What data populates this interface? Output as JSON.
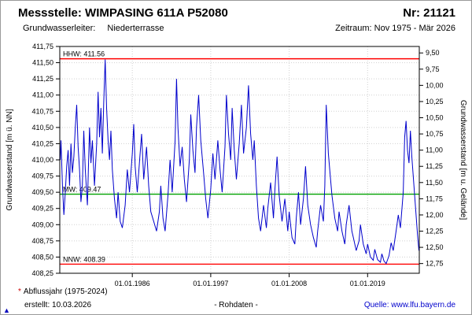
{
  "header": {
    "title": "Messstelle: WIMPASING 611A P52080",
    "number_label": "Nr: 21121",
    "aquifer_label": "Grundwasserleiter:",
    "aquifer_value": "Niederterrasse",
    "period_label": "Zeitraum: Nov 1975 - Mär 2026"
  },
  "footer": {
    "footnote_asterisk": "*",
    "footnote_text": "Abflussjahr (1975-2024)",
    "created_label": "erstellt: 10.03.2026",
    "data_type_label": "- Rohdaten -",
    "source_label": "Quelle: www.lfu.bayern.de",
    "scroll_icon": "▲"
  },
  "chart_data": {
    "type": "line",
    "title": "",
    "xlabel": "",
    "ylabel_left": "Grundwasserstand [m ü. NN]",
    "ylabel_right": "Grundwasserstand [m u. Gelände]",
    "ylim": [
      408.25,
      411.75
    ],
    "xlim": [
      1975.83,
      2026.25
    ],
    "ground_level": 421.15,
    "grid": true,
    "grid_color": "#d0d0d0",
    "legend_position": "none",
    "y_ticks_left": [
      {
        "v": 411.75,
        "label": "411,75"
      },
      {
        "v": 411.5,
        "label": "411,50"
      },
      {
        "v": 411.25,
        "label": "411,25"
      },
      {
        "v": 411.0,
        "label": "411,00"
      },
      {
        "v": 410.75,
        "label": "410,75"
      },
      {
        "v": 410.5,
        "label": "410,50"
      },
      {
        "v": 410.25,
        "label": "410,25"
      },
      {
        "v": 410.0,
        "label": "410,00"
      },
      {
        "v": 409.75,
        "label": "409,75"
      },
      {
        "v": 409.5,
        "label": "409,50"
      },
      {
        "v": 409.25,
        "label": "409,25"
      },
      {
        "v": 409.0,
        "label": "409,00"
      },
      {
        "v": 408.75,
        "label": "408,75"
      },
      {
        "v": 408.5,
        "label": "408,50"
      },
      {
        "v": 408.25,
        "label": "408,25"
      }
    ],
    "y_ticks_right": [
      {
        "v": 9.5,
        "label": "9,50"
      },
      {
        "v": 9.75,
        "label": "9,75"
      },
      {
        "v": 10.0,
        "label": "10,00"
      },
      {
        "v": 10.25,
        "label": "10,25"
      },
      {
        "v": 10.5,
        "label": "10,50"
      },
      {
        "v": 10.75,
        "label": "10,75"
      },
      {
        "v": 11.0,
        "label": "11,00"
      },
      {
        "v": 11.25,
        "label": "11,25"
      },
      {
        "v": 11.5,
        "label": "11,50"
      },
      {
        "v": 11.75,
        "label": "11,75"
      },
      {
        "v": 12.0,
        "label": "12,00"
      },
      {
        "v": 12.25,
        "label": "12,25"
      },
      {
        "v": 12.5,
        "label": "12,50"
      },
      {
        "v": 12.75,
        "label": "12,75"
      }
    ],
    "x_ticks": [
      {
        "v": 1986.0,
        "label": "01.01.1986"
      },
      {
        "v": 1997.0,
        "label": "01.01.1997"
      },
      {
        "v": 2008.0,
        "label": "01.01.2008"
      },
      {
        "v": 2019.0,
        "label": "01.01.2019"
      }
    ],
    "reference_lines": [
      {
        "name": "HHW",
        "label": "HHW: 411.56",
        "value": 411.56,
        "color": "#ff0000"
      },
      {
        "name": "MW",
        "label": "MW: 409.47",
        "value": 409.47,
        "color": "#00a000"
      },
      {
        "name": "NNW",
        "label": "NNW: 408.39",
        "value": 408.39,
        "color": "#ff0000"
      }
    ],
    "series": [
      {
        "name": "Grundwasserstand Rohdaten",
        "color": "#0000cc",
        "points": [
          [
            1975.9,
            410.0
          ],
          [
            1976.0,
            410.3
          ],
          [
            1976.2,
            409.6
          ],
          [
            1976.4,
            409.15
          ],
          [
            1976.6,
            409.5
          ],
          [
            1976.8,
            409.9
          ],
          [
            1977.0,
            410.15
          ],
          [
            1977.2,
            409.6
          ],
          [
            1977.4,
            410.25
          ],
          [
            1977.6,
            409.8
          ],
          [
            1977.8,
            410.05
          ],
          [
            1978.0,
            410.5
          ],
          [
            1978.2,
            410.85
          ],
          [
            1978.4,
            410.2
          ],
          [
            1978.6,
            409.85
          ],
          [
            1978.8,
            409.35
          ],
          [
            1979.0,
            409.6
          ],
          [
            1979.2,
            410.45
          ],
          [
            1979.4,
            409.85
          ],
          [
            1979.7,
            409.3
          ],
          [
            1980.0,
            410.5
          ],
          [
            1980.2,
            409.95
          ],
          [
            1980.4,
            410.3
          ],
          [
            1980.7,
            409.6
          ],
          [
            1981.0,
            410.25
          ],
          [
            1981.2,
            411.05
          ],
          [
            1981.4,
            410.35
          ],
          [
            1981.6,
            410.8
          ],
          [
            1981.8,
            410.1
          ],
          [
            1982.0,
            410.9
          ],
          [
            1982.2,
            411.55
          ],
          [
            1982.4,
            410.8
          ],
          [
            1982.6,
            410.3
          ],
          [
            1982.8,
            410.0
          ],
          [
            1983.0,
            410.45
          ],
          [
            1983.2,
            409.85
          ],
          [
            1983.5,
            409.4
          ],
          [
            1983.8,
            409.1
          ],
          [
            1984.0,
            409.5
          ],
          [
            1984.3,
            409.05
          ],
          [
            1984.6,
            408.95
          ],
          [
            1985.0,
            409.3
          ],
          [
            1985.3,
            409.85
          ],
          [
            1985.6,
            409.5
          ],
          [
            1986.0,
            410.1
          ],
          [
            1986.2,
            410.55
          ],
          [
            1986.4,
            409.9
          ],
          [
            1986.7,
            409.5
          ],
          [
            1987.0,
            409.95
          ],
          [
            1987.3,
            410.4
          ],
          [
            1987.6,
            409.7
          ],
          [
            1988.0,
            410.2
          ],
          [
            1988.3,
            409.6
          ],
          [
            1988.6,
            409.2
          ],
          [
            1989.0,
            409.05
          ],
          [
            1989.4,
            408.9
          ],
          [
            1989.8,
            409.2
          ],
          [
            1990.0,
            409.6
          ],
          [
            1990.3,
            409.1
          ],
          [
            1990.6,
            408.9
          ],
          [
            1991.0,
            409.45
          ],
          [
            1991.3,
            410.0
          ],
          [
            1991.6,
            409.5
          ],
          [
            1992.0,
            410.3
          ],
          [
            1992.2,
            411.25
          ],
          [
            1992.4,
            410.5
          ],
          [
            1992.7,
            409.9
          ],
          [
            1993.0,
            410.2
          ],
          [
            1993.3,
            409.7
          ],
          [
            1993.6,
            409.35
          ],
          [
            1994.0,
            410.0
          ],
          [
            1994.2,
            410.7
          ],
          [
            1994.5,
            410.15
          ],
          [
            1994.8,
            409.8
          ],
          [
            1995.0,
            410.5
          ],
          [
            1995.3,
            411.0
          ],
          [
            1995.6,
            410.3
          ],
          [
            1996.0,
            409.8
          ],
          [
            1996.3,
            409.4
          ],
          [
            1996.6,
            409.1
          ],
          [
            1997.0,
            409.55
          ],
          [
            1997.3,
            410.1
          ],
          [
            1997.6,
            409.7
          ],
          [
            1998.0,
            410.3
          ],
          [
            1998.3,
            409.85
          ],
          [
            1998.6,
            409.5
          ],
          [
            1999.0,
            410.2
          ],
          [
            1999.2,
            411.0
          ],
          [
            1999.5,
            410.4
          ],
          [
            1999.8,
            410.0
          ],
          [
            2000.0,
            410.8
          ],
          [
            2000.3,
            410.15
          ],
          [
            2000.6,
            409.7
          ],
          [
            2001.0,
            410.25
          ],
          [
            2001.3,
            410.85
          ],
          [
            2001.6,
            410.1
          ],
          [
            2002.0,
            410.5
          ],
          [
            2002.3,
            411.15
          ],
          [
            2002.6,
            410.4
          ],
          [
            2002.9,
            410.0
          ],
          [
            2003.1,
            410.3
          ],
          [
            2003.4,
            409.6
          ],
          [
            2003.7,
            409.1
          ],
          [
            2004.0,
            408.9
          ],
          [
            2004.4,
            409.3
          ],
          [
            2004.8,
            408.95
          ],
          [
            2005.0,
            409.25
          ],
          [
            2005.4,
            409.65
          ],
          [
            2005.8,
            409.1
          ],
          [
            2006.0,
            409.55
          ],
          [
            2006.3,
            410.05
          ],
          [
            2006.6,
            409.45
          ],
          [
            2007.0,
            409.05
          ],
          [
            2007.4,
            409.4
          ],
          [
            2007.8,
            408.9
          ],
          [
            2008.0,
            409.2
          ],
          [
            2008.4,
            408.8
          ],
          [
            2008.8,
            408.7
          ],
          [
            2009.0,
            409.1
          ],
          [
            2009.3,
            409.5
          ],
          [
            2009.6,
            409.0
          ],
          [
            2010.0,
            409.4
          ],
          [
            2010.3,
            409.9
          ],
          [
            2010.6,
            409.3
          ],
          [
            2011.0,
            409.0
          ],
          [
            2011.4,
            408.8
          ],
          [
            2011.8,
            408.65
          ],
          [
            2012.0,
            408.9
          ],
          [
            2012.4,
            409.3
          ],
          [
            2012.8,
            409.05
          ],
          [
            2013.0,
            409.6
          ],
          [
            2013.2,
            410.85
          ],
          [
            2013.5,
            410.1
          ],
          [
            2013.8,
            409.7
          ],
          [
            2014.0,
            409.45
          ],
          [
            2014.4,
            409.1
          ],
          [
            2014.8,
            408.9
          ],
          [
            2015.0,
            409.2
          ],
          [
            2015.4,
            408.9
          ],
          [
            2015.8,
            408.7
          ],
          [
            2016.0,
            409.0
          ],
          [
            2016.4,
            409.3
          ],
          [
            2016.8,
            408.9
          ],
          [
            2017.0,
            408.8
          ],
          [
            2017.4,
            408.6
          ],
          [
            2017.8,
            408.75
          ],
          [
            2018.0,
            409.0
          ],
          [
            2018.4,
            408.7
          ],
          [
            2018.8,
            408.55
          ],
          [
            2019.0,
            408.7
          ],
          [
            2019.4,
            408.5
          ],
          [
            2019.8,
            408.45
          ],
          [
            2020.0,
            408.62
          ],
          [
            2020.4,
            408.46
          ],
          [
            2020.8,
            408.42
          ],
          [
            2021.0,
            408.55
          ],
          [
            2021.3,
            408.44
          ],
          [
            2021.6,
            408.4
          ],
          [
            2022.0,
            408.52
          ],
          [
            2022.3,
            408.72
          ],
          [
            2022.6,
            408.6
          ],
          [
            2023.0,
            408.9
          ],
          [
            2023.3,
            409.15
          ],
          [
            2023.6,
            408.95
          ],
          [
            2024.0,
            409.5
          ],
          [
            2024.2,
            410.35
          ],
          [
            2024.4,
            410.6
          ],
          [
            2024.6,
            410.15
          ],
          [
            2024.8,
            409.95
          ],
          [
            2025.0,
            410.45
          ],
          [
            2025.2,
            410.05
          ],
          [
            2025.5,
            409.6
          ],
          [
            2025.8,
            409.15
          ],
          [
            2026.0,
            408.85
          ],
          [
            2026.2,
            408.6
          ]
        ]
      }
    ]
  }
}
